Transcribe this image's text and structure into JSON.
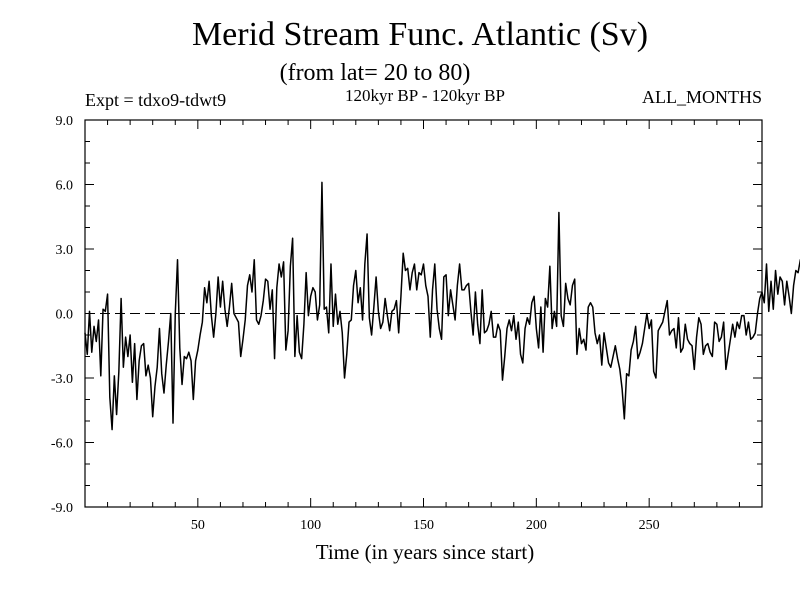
{
  "header": {
    "title": "Merid Stream Func. Atlantic (Sv)",
    "subtitle": "(from lat= 20 to 80)",
    "left_note": "Expt = tdxo9-tdwt9",
    "center_note": "120kyr BP - 120kyr BP",
    "right_note": "ALL_MONTHS"
  },
  "chart_data": {
    "type": "line",
    "title": "Merid Stream Func. Atlantic (Sv)",
    "subtitle": "(from lat= 20 to 80)",
    "xlabel": "Time (in years since start)",
    "ylabel": "",
    "xlim": [
      0,
      300
    ],
    "ylim": [
      -9.0,
      9.0
    ],
    "x_ticks": [
      50,
      100,
      150,
      200,
      250
    ],
    "x_tick_labels": [
      "50",
      "100",
      "150",
      "200",
      "250"
    ],
    "y_ticks": [
      -9.0,
      -6.0,
      -3.0,
      0.0,
      3.0,
      6.0,
      9.0
    ],
    "y_tick_labels": [
      "-9.0",
      "-6.0",
      "-3.0",
      "0.0",
      "3.0",
      "6.0",
      "9.0"
    ],
    "zero_line": "dashed",
    "grid": false,
    "line_color": "#000000",
    "series": [
      {
        "x_start": 0,
        "x_step": 1,
        "values": [
          -0.9,
          -1.9,
          0.1,
          -1.8,
          -0.6,
          -1.3,
          -0.3,
          -2.9,
          0.2,
          0.1,
          0.9,
          -3.9,
          -5.4,
          -2.9,
          -4.7,
          -2.7,
          0.7,
          -2.5,
          -1.1,
          -2.0,
          -1.0,
          -3.2,
          -1.4,
          -4.0,
          -2.2,
          -1.5,
          -1.4,
          -2.9,
          -2.4,
          -3.0,
          -4.8,
          -3.4,
          -2.5,
          -0.7,
          -2.8,
          -3.7,
          -2.4,
          -1.3,
          0.0,
          -5.1,
          0.0,
          2.5,
          -1.6,
          -3.3,
          -2.0,
          -2.1,
          -1.8,
          -2.2,
          -4.0,
          -2.2,
          -1.7,
          -1.0,
          -0.4,
          1.2,
          0.5,
          1.5,
          -0.1,
          -1.1,
          0.0,
          1.7,
          0.3,
          1.5,
          0.2,
          -0.6,
          0.3,
          1.4,
          0.0,
          -0.2,
          -0.4,
          -2.0,
          -1.2,
          -0.3,
          1.3,
          1.8,
          1.0,
          2.5,
          -0.3,
          -0.5,
          -0.1,
          0.6,
          1.6,
          1.5,
          0.2,
          1.1,
          -2.1,
          1.2,
          2.3,
          1.7,
          2.4,
          -1.7,
          -0.8,
          2.2,
          3.5,
          -2.0,
          -0.1,
          -1.8,
          -2.1,
          -0.5,
          1.9,
          -0.1,
          0.8,
          1.2,
          1.0,
          -0.3,
          0.4,
          6.1,
          0.2,
          0.3,
          -0.9,
          2.3,
          -0.6,
          0.9,
          -0.5,
          0.1,
          -0.9,
          -3.0,
          -1.9,
          -0.4,
          -0.3,
          1.3,
          2.0,
          0.5,
          1.2,
          -0.3,
          2.3,
          3.7,
          -0.2,
          -1.0,
          0.3,
          1.7,
          0.1,
          -0.7,
          -0.4,
          0.7,
          -0.1,
          -0.8,
          0.1,
          0.2,
          0.6,
          -0.9,
          0.8,
          2.8,
          2.0,
          2.1,
          1.1,
          1.9,
          2.3,
          1.1,
          1.9,
          1.8,
          2.3,
          1.3,
          0.8,
          -1.1,
          1.1,
          2.3,
          0.2,
          -0.7,
          -1.2,
          1.7,
          1.8,
          -0.1,
          1.1,
          0.4,
          -0.3,
          1.3,
          2.3,
          1.1,
          1.1,
          1.3,
          1.4,
          0.1,
          -1.0,
          1.0,
          -0.5,
          -1.4,
          1.1,
          -0.9,
          -0.8,
          -0.5,
          0.1,
          -1.1,
          -1.1,
          -0.5,
          -0.8,
          -3.1,
          -2.0,
          -0.7,
          -0.3,
          -0.8,
          -0.1,
          -1.2,
          -0.4,
          -1.9,
          -2.3,
          -0.7,
          -0.2,
          -0.5,
          0.5,
          0.8,
          -0.7,
          -1.6,
          0.3,
          -1.8,
          0.7,
          0.3,
          2.2,
          -0.7,
          0.1,
          -0.6,
          4.7,
          -0.1,
          -0.6,
          1.4,
          0.7,
          0.4,
          1.3,
          1.6,
          -1.9,
          -0.7,
          -1.4,
          -1.2,
          -1.7,
          0.3,
          0.5,
          0.3,
          -0.9,
          -1.4,
          -1.0,
          -2.4,
          -0.9,
          -1.6,
          -2.3,
          -2.5,
          -2.0,
          -1.5,
          -2.1,
          -2.6,
          -3.5,
          -4.9,
          -2.8,
          -2.9,
          -1.7,
          -1.3,
          -0.6,
          -2.1,
          -1.8,
          -1.4,
          -0.7,
          0.0,
          -0.7,
          -0.3,
          -2.7,
          -3.0,
          -0.8,
          -0.6,
          -0.4,
          0.1,
          0.6,
          -1.0,
          -0.8,
          -0.7,
          -1.6,
          -0.2,
          -1.8,
          -1.6,
          -0.5,
          -1.2,
          -1.4,
          -1.5,
          -2.6,
          -1.1,
          -0.2,
          -0.5,
          -1.9,
          -1.5,
          -1.4,
          -1.8,
          -2.0,
          -0.4,
          -0.5,
          -1.3,
          -1.1,
          -0.4,
          -2.6,
          -1.9,
          -1.2,
          -0.5,
          -1.1,
          -0.4,
          -0.7,
          -0.1,
          -0.1,
          -1.0,
          -0.4,
          -1.2,
          -1.1,
          -0.9,
          0.0,
          0.7,
          1.0,
          0.5,
          2.3,
          0.1,
          1.5,
          0.2,
          2.0,
          0.9,
          1.7,
          1.5,
          0.4,
          1.5,
          0.8,
          0.0,
          1.3,
          2.0,
          1.9,
          2.5,
          2.0
        ]
      }
    ]
  }
}
